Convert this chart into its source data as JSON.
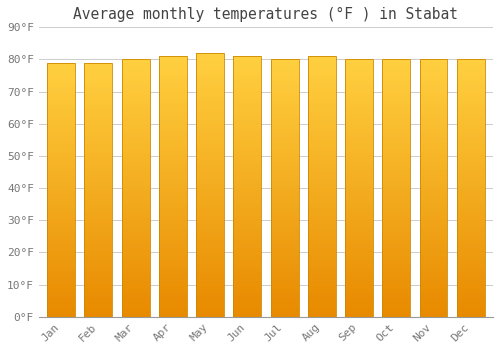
{
  "title": "Average monthly temperatures (°F ) in Stabat",
  "months": [
    "Jan",
    "Feb",
    "Mar",
    "Apr",
    "May",
    "Jun",
    "Jul",
    "Aug",
    "Sep",
    "Oct",
    "Nov",
    "Dec"
  ],
  "values": [
    79,
    79,
    80,
    81,
    82,
    81,
    80,
    81,
    80,
    80,
    80,
    80
  ],
  "ylim": [
    0,
    90
  ],
  "yticks": [
    0,
    10,
    20,
    30,
    40,
    50,
    60,
    70,
    80,
    90
  ],
  "ytick_labels": [
    "0°F",
    "10°F",
    "20°F",
    "30°F",
    "40°F",
    "50°F",
    "60°F",
    "70°F",
    "80°F",
    "90°F"
  ],
  "bar_color_bright": "#FFD060",
  "bar_color_mid": "#FFAA00",
  "bar_color_dark": "#E88A00",
  "bar_edge_color": "#CC8800",
  "background_color": "#FFFFFF",
  "plot_bg_color": "#FFFFFF",
  "grid_color": "#CCCCCC",
  "title_fontsize": 10.5,
  "tick_fontsize": 8,
  "title_color": "#444444",
  "tick_color": "#777777"
}
